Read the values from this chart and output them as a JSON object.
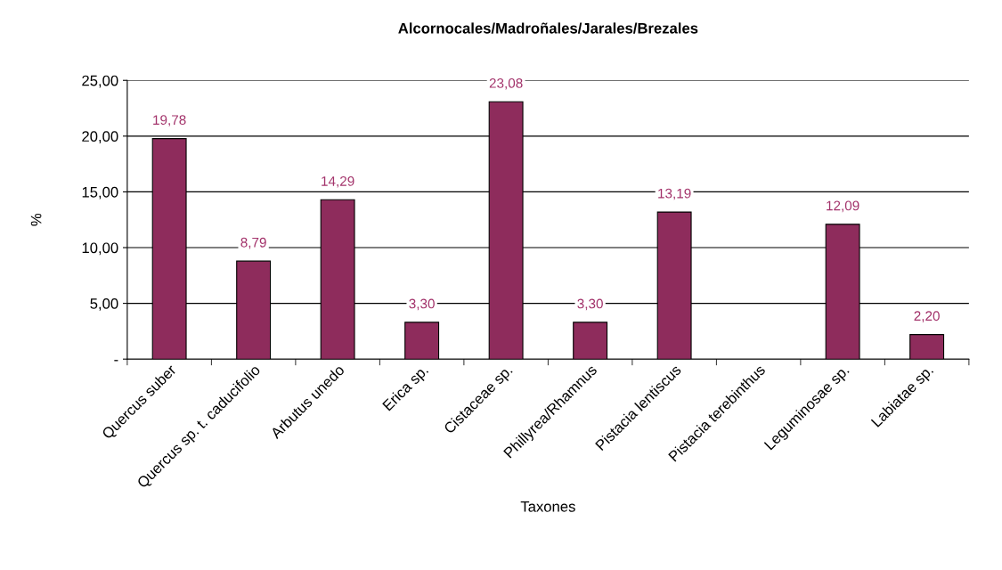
{
  "chart_data": {
    "type": "bar",
    "title": "Alcornocales/Madroñales/Jarales/Brezales",
    "xlabel": "Taxones",
    "ylabel": "%",
    "categories": [
      "Quercus suber",
      "Quercus sp. t. caducifolio",
      "Arbutus unedo",
      "Erica sp.",
      "Cistaceae sp.",
      "Phillyrea/Rhamnus",
      "Pistacia lentiscus",
      "Pistacia terebinthus",
      "Leguminosae sp.",
      "Labiatae sp."
    ],
    "values": [
      19.78,
      8.79,
      14.29,
      3.3,
      23.08,
      3.3,
      13.19,
      null,
      12.09,
      2.2
    ],
    "value_labels": [
      "19,78",
      "8,79",
      "14,29",
      "3,30",
      "23,08",
      "3,30",
      "13,19",
      null,
      "12,09",
      "2,20"
    ],
    "color": "#8e2c5c",
    "ylim": [
      0,
      25
    ],
    "yticks": [
      {
        "value": 0,
        "label": "-"
      },
      {
        "value": 5,
        "label": "5,00"
      },
      {
        "value": 10,
        "label": "10,00"
      },
      {
        "value": 15,
        "label": "15,00"
      },
      {
        "value": 20,
        "label": "20,00"
      },
      {
        "value": 25,
        "label": "25,00"
      }
    ],
    "grid": "y",
    "legend": false
  }
}
